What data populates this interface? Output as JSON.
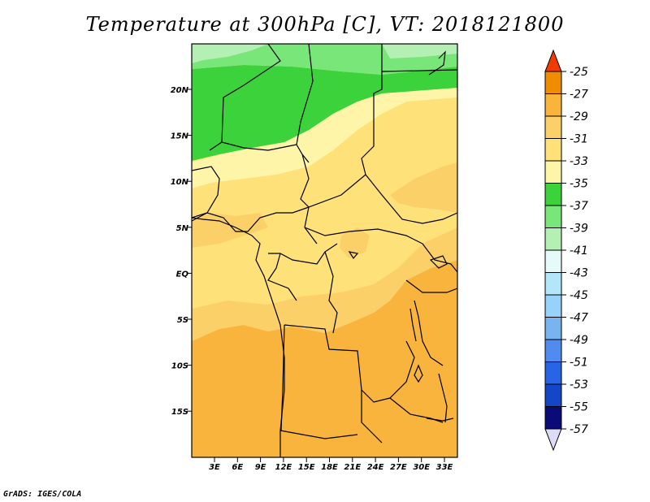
{
  "title": "Temperature at 300hPa [C], VT: 2018121800",
  "credit": "GrADS: IGES/COLA",
  "map": {
    "lat_ticks": [
      "20N",
      "15N",
      "10N",
      "5N",
      "EQ",
      "5S",
      "10S",
      "15S"
    ],
    "lon_ticks": [
      "3E",
      "6E",
      "9E",
      "12E",
      "15E",
      "18E",
      "21E",
      "24E",
      "27E",
      "30E",
      "33E"
    ],
    "field_colors": {
      "neg41": "#b4f0b4",
      "neg39": "#78e678",
      "neg37": "#3cd23c",
      "neg35": "#fff5a8",
      "neg33": "#ffe17a",
      "neg31": "#fcd068",
      "neg29": "#f8b43c"
    }
  },
  "colorbar": {
    "labels": [
      "-25",
      "-27",
      "-29",
      "-31",
      "-33",
      "-35",
      "-37",
      "-39",
      "-41",
      "-43",
      "-45",
      "-47",
      "-49",
      "-51",
      "-53",
      "-55",
      "-57"
    ],
    "colors": [
      "#f05000",
      "#f08c00",
      "#f8b43c",
      "#fcd068",
      "#ffe17a",
      "#fff5a8",
      "#3cd23c",
      "#78e678",
      "#b4f0b4",
      "#e6fafa",
      "#b4e6fa",
      "#96d2fa",
      "#78b4f0",
      "#508cf0",
      "#2864e6",
      "#1446c8",
      "#0a0a78"
    ],
    "top_arrow_color": "#f03c00",
    "bottom_arrow_color": "#dcdcf8"
  }
}
